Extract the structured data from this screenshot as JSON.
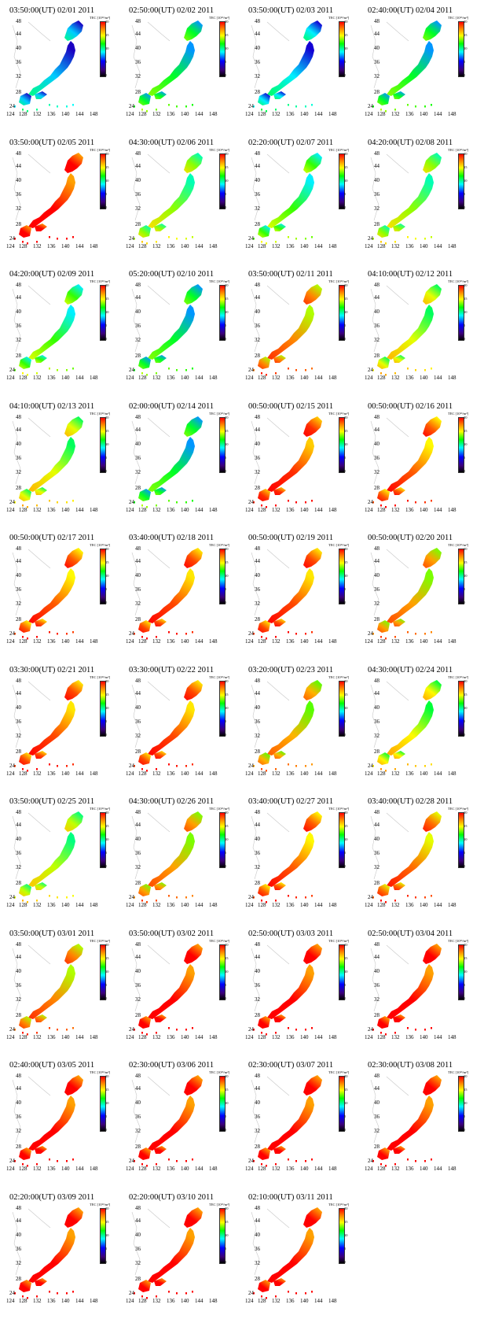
{
  "colorbar": {
    "label": "TEC [10¹⁶/m²]",
    "ticks": [
      "20",
      "15",
      "10",
      "5",
      "0"
    ],
    "colors": [
      "#000000",
      "#3b007a",
      "#0000ff",
      "#00ffff",
      "#00ff00",
      "#ffff00",
      "#ff8000",
      "#ff0000"
    ]
  },
  "axes": {
    "lat_ticks": [
      "48",
      "44",
      "40",
      "36",
      "32",
      "28",
      "24"
    ],
    "lon_ticks": [
      "124",
      "128",
      "132",
      "136",
      "140",
      "144",
      "148"
    ]
  },
  "panels": [
    {
      "title": "03:50:00(UT)  02/01 2011",
      "tec_level": 0.4
    },
    {
      "title": "02:50:00(UT)  02/02 2011",
      "tec_level": 0.55
    },
    {
      "title": "03:50:00(UT)  02/03 2011",
      "tec_level": 0.42
    },
    {
      "title": "02:40:00(UT)  02/04 2011",
      "tec_level": 0.55
    },
    {
      "title": "03:50:00(UT)  02/05 2011",
      "tec_level": 1.0
    },
    {
      "title": "04:30:00(UT)  02/06 2011",
      "tec_level": 0.65
    },
    {
      "title": "02:20:00(UT)  02/07 2011",
      "tec_level": 0.6
    },
    {
      "title": "04:20:00(UT)  02/08 2011",
      "tec_level": 0.65
    },
    {
      "title": "04:20:00(UT)  02/09 2011",
      "tec_level": 0.6
    },
    {
      "title": "05:20:00(UT)  02/10 2011",
      "tec_level": 0.55
    },
    {
      "title": "03:50:00(UT)  02/11 2011",
      "tec_level": 0.85
    },
    {
      "title": "04:10:00(UT)  02/12 2011",
      "tec_level": 0.7
    },
    {
      "title": "04:10:00(UT)  02/13 2011",
      "tec_level": 0.7
    },
    {
      "title": "02:00:00(UT)  02/14 2011",
      "tec_level": 0.55
    },
    {
      "title": "00:50:00(UT)  02/15 2011",
      "tec_level": 0.95
    },
    {
      "title": "00:50:00(UT)  02/16 2011",
      "tec_level": 0.9
    },
    {
      "title": "00:50:00(UT)  02/17 2011",
      "tec_level": 0.9
    },
    {
      "title": "03:40:00(UT)  02/18 2011",
      "tec_level": 0.92
    },
    {
      "title": "00:50:00(UT)  02/19 2011",
      "tec_level": 0.92
    },
    {
      "title": "00:50:00(UT)  02/20 2011",
      "tec_level": 0.82
    },
    {
      "title": "03:30:00(UT)  02/21 2011",
      "tec_level": 0.92
    },
    {
      "title": "03:30:00(UT)  02/22 2011",
      "tec_level": 0.92
    },
    {
      "title": "03:20:00(UT)  02/23 2011",
      "tec_level": 0.8
    },
    {
      "title": "04:30:00(UT)  02/24 2011",
      "tec_level": 0.72
    },
    {
      "title": "03:50:00(UT)  02/25 2011",
      "tec_level": 0.68
    },
    {
      "title": "04:30:00(UT)  02/26 2011",
      "tec_level": 0.82
    },
    {
      "title": "03:40:00(UT)  02/27 2011",
      "tec_level": 0.9
    },
    {
      "title": "03:40:00(UT)  02/28 2011",
      "tec_level": 0.88
    },
    {
      "title": "03:50:00(UT)  03/01 2011",
      "tec_level": 0.85
    },
    {
      "title": "03:50:00(UT)  03/02 2011",
      "tec_level": 1.0
    },
    {
      "title": "02:50:00(UT)  03/03 2011",
      "tec_level": 1.0
    },
    {
      "title": "02:50:00(UT)  03/04 2011",
      "tec_level": 1.0
    },
    {
      "title": "02:40:00(UT)  03/05 2011",
      "tec_level": 1.0
    },
    {
      "title": "02:30:00(UT)  03/06 2011",
      "tec_level": 1.0
    },
    {
      "title": "02:30:00(UT)  03/07 2011",
      "tec_level": 1.0
    },
    {
      "title": "02:30:00(UT)  03/08 2011",
      "tec_level": 1.0
    },
    {
      "title": "02:20:00(UT)  03/09 2011",
      "tec_level": 1.0
    },
    {
      "title": "02:20:00(UT)  03/10 2011",
      "tec_level": 1.0
    },
    {
      "title": "02:10:00(UT)  03/11 2011",
      "tec_level": 1.0
    }
  ]
}
